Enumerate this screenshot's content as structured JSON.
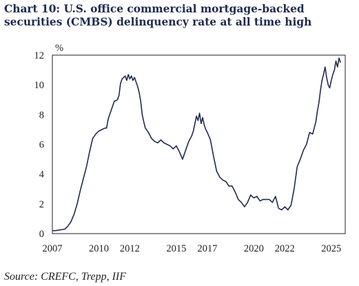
{
  "title": "Chart 10: U.S. office commercial mortgage-backed securities (CMBS) delinquency rate at all time high",
  "source": "Source: CREFC, Trepp, IIF",
  "colors": {
    "line": "#1f2b4f",
    "frame": "#222222",
    "title": "#1f2b4f"
  },
  "chart_data": {
    "type": "line",
    "title": "Chart 10: U.S. office commercial mortgage-backed securities (CMBS) delinquency rate at all time high",
    "ylabel": "%",
    "xlabel": "",
    "xlim": [
      2007,
      2025.9
    ],
    "ylim": [
      0,
      12
    ],
    "x_ticks": [
      2007,
      2010,
      2012,
      2015,
      2017,
      2020,
      2022,
      2025
    ],
    "y_ticks": [
      0,
      2,
      4,
      6,
      8,
      10,
      12
    ],
    "grid": false,
    "legend": "none",
    "series": [
      {
        "x": [
          2007.0,
          2007.2,
          2007.5,
          2007.8,
          2008.0,
          2008.2,
          2008.4,
          2008.6,
          2008.8,
          2009.0,
          2009.2,
          2009.4,
          2009.6,
          2009.8,
          2010.0,
          2010.2,
          2010.4,
          2010.5,
          2010.6,
          2010.8,
          2011.0,
          2011.2,
          2011.3,
          2011.4,
          2011.5,
          2011.6,
          2011.7,
          2011.8,
          2011.9,
          2012.0,
          2012.1,
          2012.2,
          2012.3,
          2012.4,
          2012.5,
          2012.6,
          2012.7,
          2012.8,
          2012.9,
          2013.0,
          2013.2,
          2013.4,
          2013.6,
          2013.8,
          2014.0,
          2014.2,
          2014.4,
          2014.6,
          2014.8,
          2015.0,
          2015.2,
          2015.4,
          2015.6,
          2015.8,
          2016.0,
          2016.1,
          2016.2,
          2016.3,
          2016.4,
          2016.5,
          2016.6,
          2016.7,
          2016.8,
          2016.9,
          2017.0,
          2017.2,
          2017.4,
          2017.6,
          2017.8,
          2018.0,
          2018.2,
          2018.4,
          2018.6,
          2018.8,
          2019.0,
          2019.2,
          2019.4,
          2019.6,
          2019.8,
          2020.0,
          2020.2,
          2020.4,
          2020.6,
          2020.8,
          2021.0,
          2021.2,
          2021.4,
          2021.6,
          2021.8,
          2022.0,
          2022.2,
          2022.4,
          2022.6,
          2022.8,
          2023.0,
          2023.2,
          2023.4,
          2023.6,
          2023.8,
          2024.0,
          2024.1,
          2024.2,
          2024.3,
          2024.4,
          2024.5,
          2024.6,
          2024.7,
          2024.8,
          2024.9,
          2025.0,
          2025.1,
          2025.2,
          2025.3,
          2025.4,
          2025.5,
          2025.6
        ],
        "y": [
          0.2,
          0.2,
          0.25,
          0.3,
          0.5,
          0.8,
          1.3,
          2.0,
          2.9,
          3.7,
          4.5,
          5.5,
          6.4,
          6.7,
          6.9,
          7.0,
          7.1,
          7.1,
          7.7,
          8.3,
          8.9,
          9.0,
          9.3,
          10.1,
          10.4,
          10.5,
          10.6,
          10.3,
          10.7,
          10.4,
          10.6,
          10.3,
          10.5,
          10.2,
          9.9,
          9.5,
          8.9,
          8.0,
          7.5,
          7.1,
          6.8,
          6.4,
          6.2,
          6.1,
          6.3,
          6.1,
          6.0,
          5.9,
          5.7,
          5.9,
          5.5,
          5.0,
          5.6,
          6.2,
          6.6,
          6.9,
          7.4,
          7.9,
          7.6,
          8.1,
          7.4,
          7.8,
          7.3,
          7.0,
          6.8,
          6.3,
          5.2,
          4.2,
          3.8,
          3.6,
          3.5,
          3.2,
          3.2,
          2.8,
          2.3,
          2.1,
          1.8,
          2.1,
          2.6,
          2.4,
          2.5,
          2.2,
          2.3,
          2.3,
          2.3,
          2.1,
          2.5,
          1.7,
          1.6,
          1.8,
          1.6,
          1.9,
          3.0,
          4.5,
          5.0,
          5.6,
          6.0,
          6.8,
          6.7,
          7.5,
          8.2,
          8.8,
          9.6,
          10.3,
          10.7,
          11.2,
          10.5,
          10.0,
          9.8,
          10.3,
          10.7,
          11.0,
          11.6,
          11.2,
          11.8,
          11.5
        ]
      }
    ]
  }
}
